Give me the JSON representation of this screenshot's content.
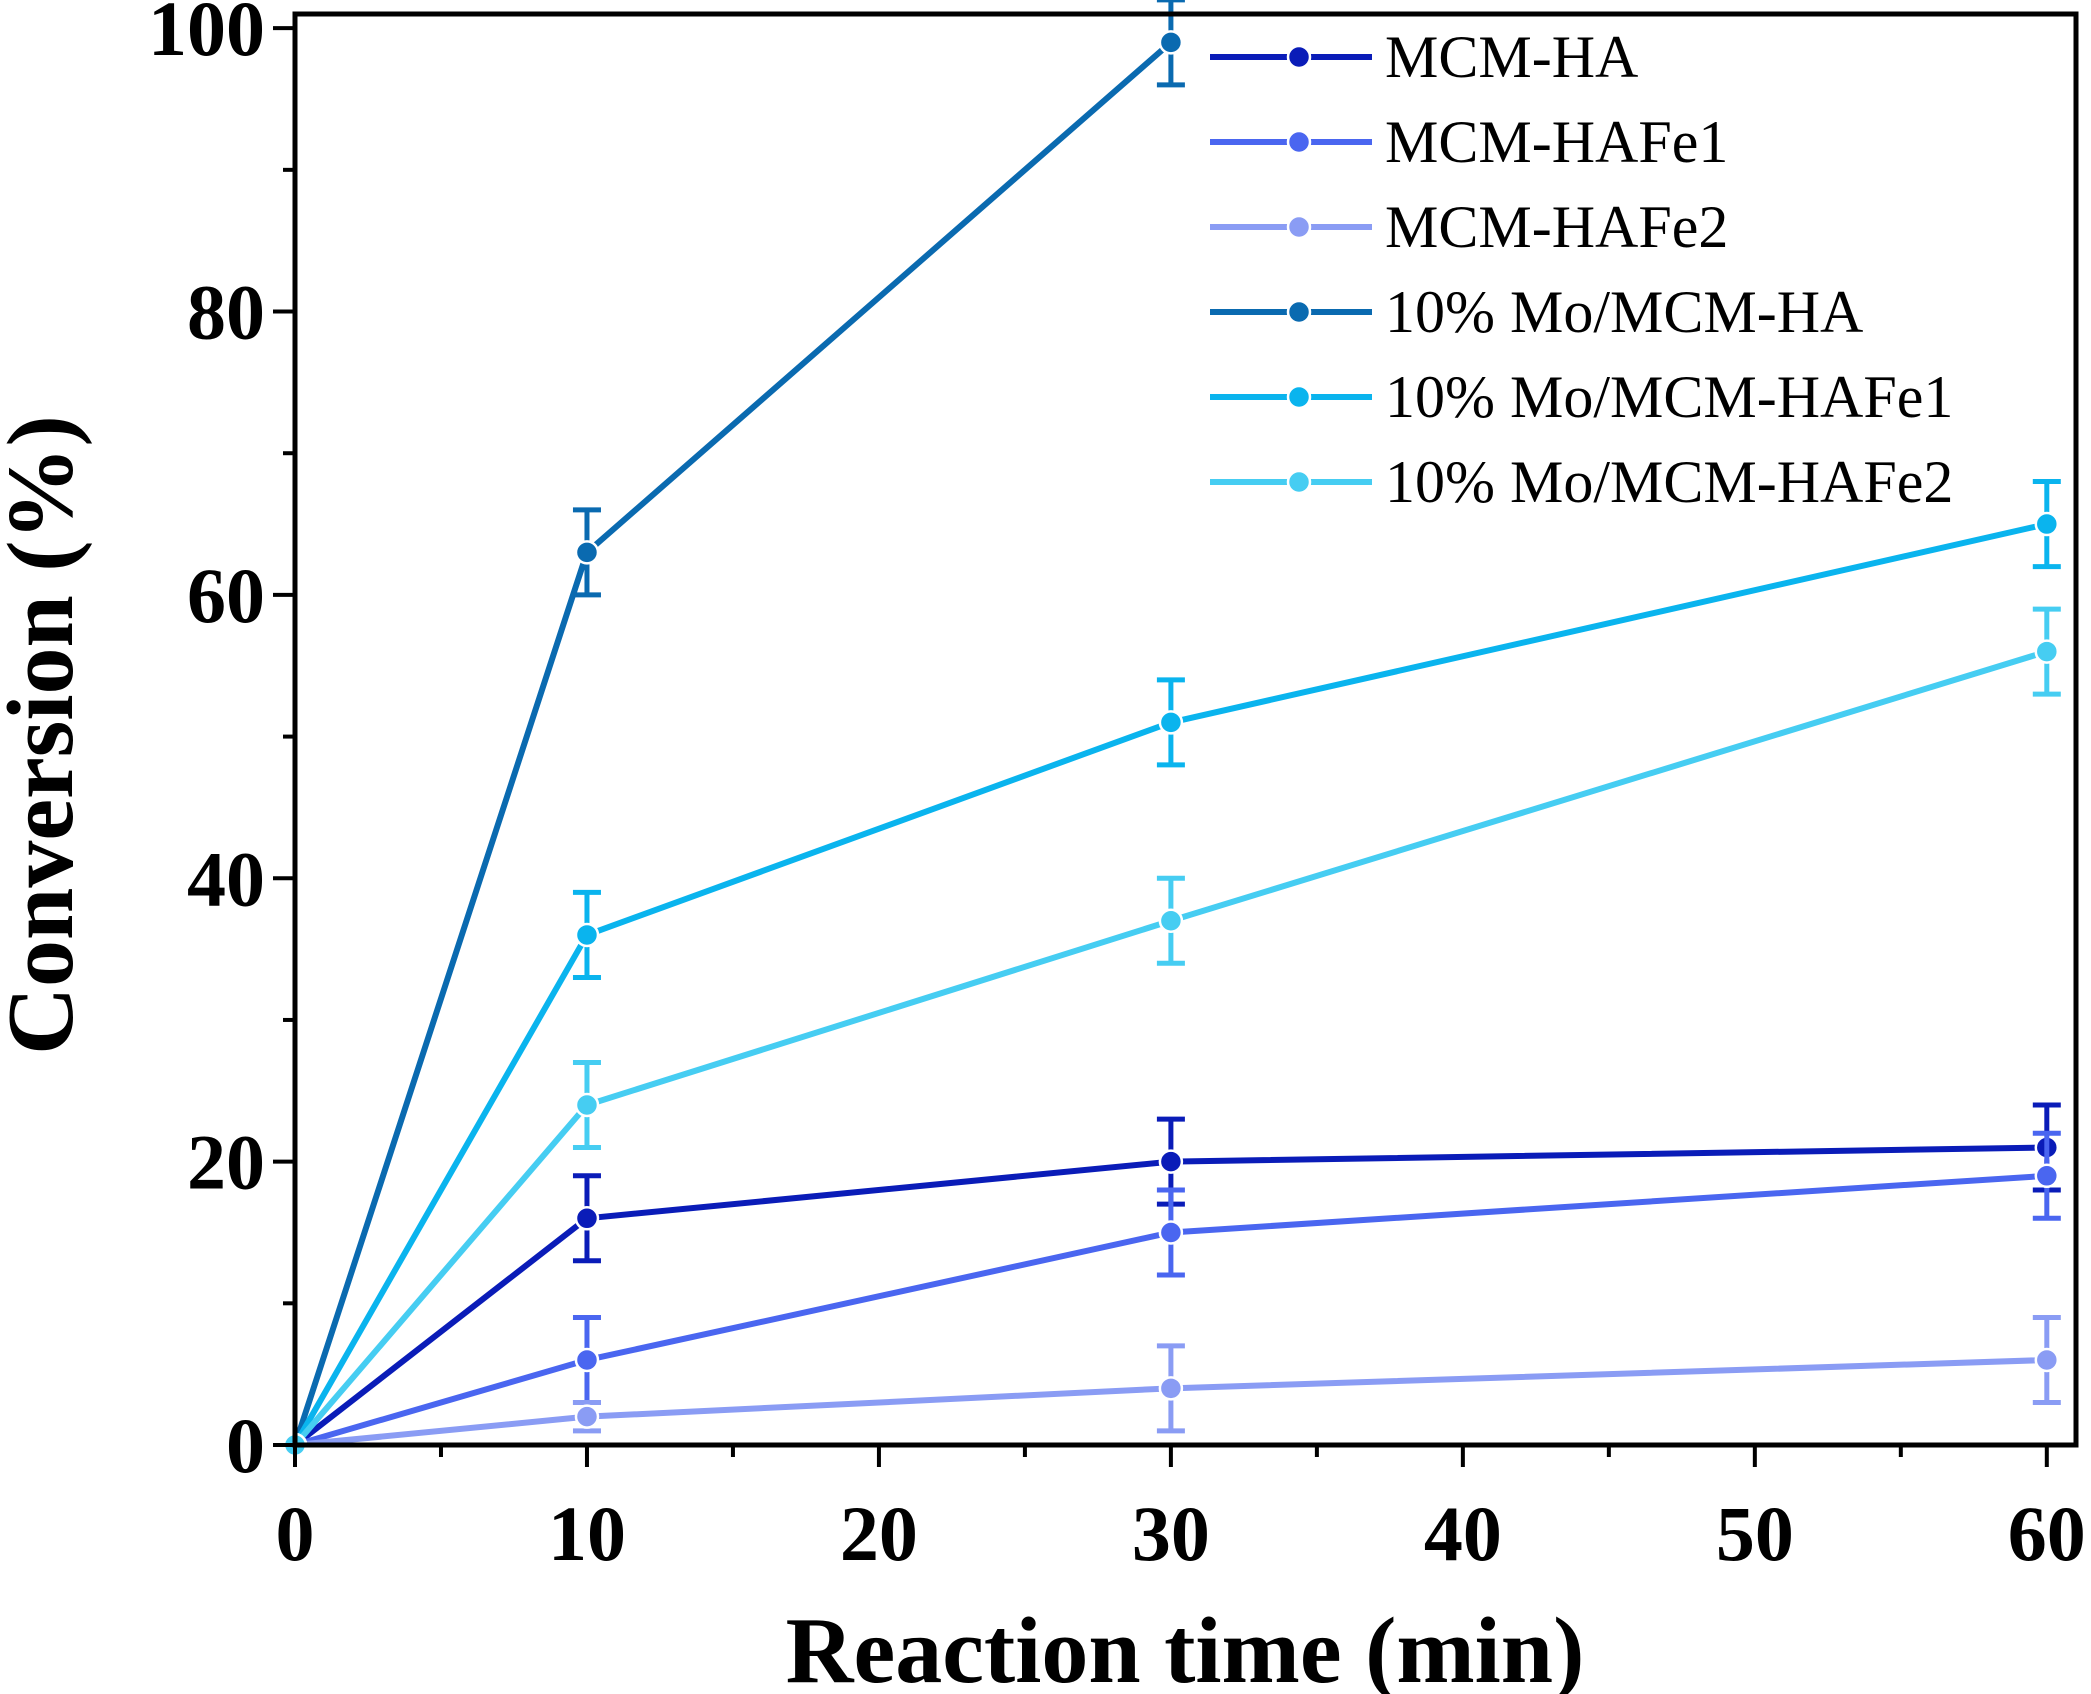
{
  "chart_data": {
    "type": "line",
    "title": "",
    "xlabel": "Reaction time (min)",
    "ylabel": "Conversion (%)",
    "xlim": [
      0,
      61
    ],
    "ylim": [
      0,
      101
    ],
    "xticks": [
      0,
      10,
      20,
      30,
      40,
      50,
      60
    ],
    "yticks": [
      0,
      20,
      40,
      60,
      80,
      100
    ],
    "grid": false,
    "legend_position": "top-right",
    "series": [
      {
        "name": "MCM-HA",
        "color": "#0a1cb8",
        "x": [
          0,
          10,
          30,
          60
        ],
        "y": [
          0,
          16,
          20,
          21
        ],
        "err": [
          0,
          3,
          3,
          3
        ]
      },
      {
        "name": "MCM-HAFe1",
        "color": "#4a66f0",
        "x": [
          0,
          10,
          30,
          60
        ],
        "y": [
          0,
          6,
          15,
          19
        ],
        "err": [
          0,
          3,
          3,
          3
        ]
      },
      {
        "name": "MCM-HAFe2",
        "color": "#8a9cf4",
        "x": [
          0,
          10,
          30,
          60
        ],
        "y": [
          0,
          2,
          4,
          6
        ],
        "err": [
          0,
          1,
          3,
          3
        ]
      },
      {
        "name": "10% Mo/MCM-HA",
        "color": "#0a6ab0",
        "x": [
          0,
          10,
          30
        ],
        "y": [
          0,
          63,
          99
        ],
        "err": [
          0,
          3,
          3
        ]
      },
      {
        "name": "10% Mo/MCM-HAFe1",
        "color": "#0ab4ee",
        "x": [
          0,
          10,
          30,
          60
        ],
        "y": [
          0,
          36,
          51,
          65
        ],
        "err": [
          0,
          3,
          3,
          3
        ]
      },
      {
        "name": "10% Mo/MCM-HAFe2",
        "color": "#46cdf2",
        "x": [
          0,
          10,
          30,
          60
        ],
        "y": [
          0,
          24,
          37,
          56
        ],
        "err": [
          0,
          3,
          3,
          3
        ]
      }
    ]
  }
}
